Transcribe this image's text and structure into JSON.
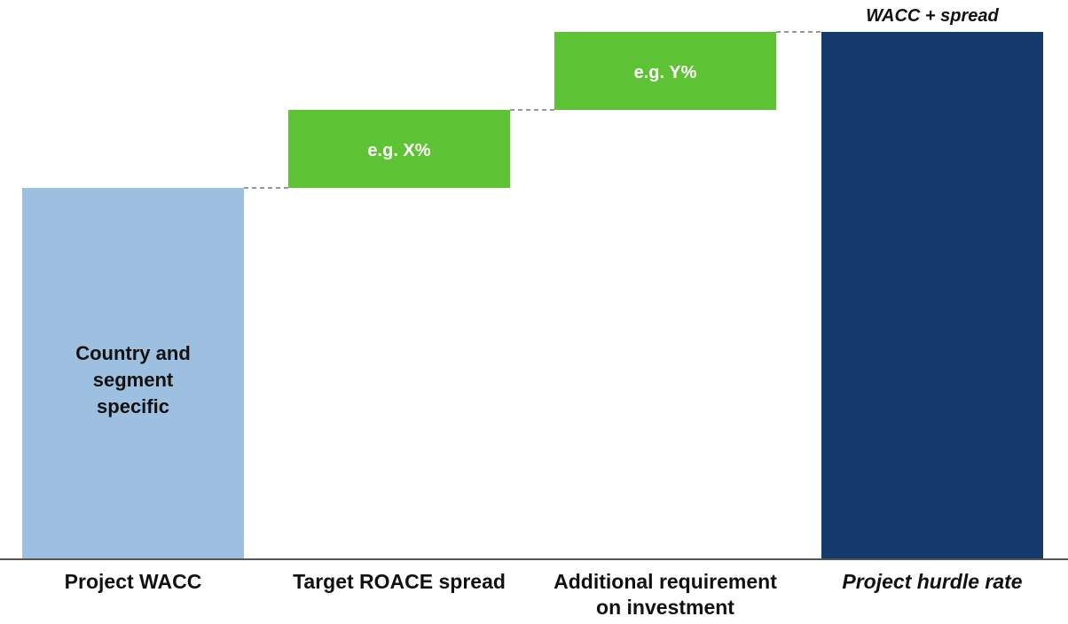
{
  "chart_data": {
    "type": "bar",
    "subtype": "waterfall",
    "categories": [
      "Project WACC",
      "Target ROACE spread",
      "Additional requirement on investment",
      "Project hurdle rate"
    ],
    "category_lines": [
      [
        "Project WACC"
      ],
      [
        "Target ROACE spread"
      ],
      [
        "Additional requirement",
        "on investment"
      ],
      [
        "Project hurdle rate"
      ]
    ],
    "series": [
      {
        "kinds": [
          "total",
          "delta",
          "delta",
          "total"
        ],
        "values": [
          10,
          2.1,
          2.1,
          14.2
        ],
        "labels": [
          [
            "Country and",
            "segment",
            "specific"
          ],
          [
            "e.g. X%"
          ],
          [
            "e.g. Y%"
          ],
          []
        ]
      }
    ],
    "top_annotation": "WACC + spread",
    "ylim": [
      0,
      14.2
    ],
    "colors": {
      "base": "#9dbfe0",
      "delta": "#5ec235",
      "total": "#163a6e",
      "connector": "#777777",
      "axis": "#555555"
    },
    "italic_categories": [
      3
    ],
    "grid": false,
    "legend": "none"
  }
}
